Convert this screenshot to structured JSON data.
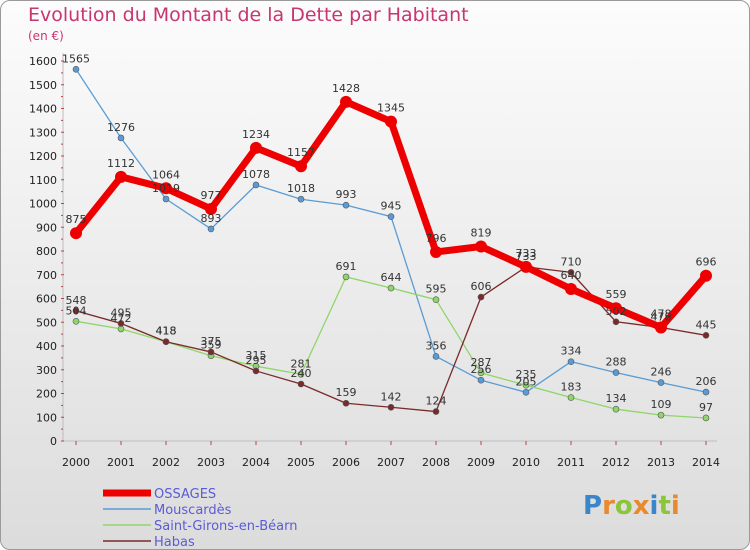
{
  "header": {
    "title": "Evolution du Montant de la Dette par Habitant",
    "unit": "(en €)"
  },
  "logo": {
    "text": "Proxiti"
  },
  "chart_data": {
    "type": "line",
    "title": "Evolution du Montant de la Dette par Habitant",
    "ylabel": "(en €)",
    "ylim": [
      0,
      1600
    ],
    "yticks": [
      0,
      100,
      200,
      300,
      400,
      500,
      600,
      700,
      800,
      900,
      1000,
      1100,
      1200,
      1300,
      1400,
      1500,
      1600
    ],
    "x": [
      "2000",
      "2001",
      "2002",
      "2003",
      "2004",
      "2005",
      "2006",
      "2007",
      "2008",
      "2009",
      "2010",
      "2011",
      "2012",
      "2013",
      "2014"
    ],
    "grid": false,
    "legend_position": "bottom-left",
    "series": [
      {
        "name": "OSSAGES",
        "color": "#ee0000",
        "width": 7,
        "values": [
          875,
          1112,
          1064,
          977,
          1234,
          1157,
          1428,
          1345,
          796,
          819,
          733,
          640,
          559,
          478,
          696
        ]
      },
      {
        "name": "Mouscardès",
        "color": "#5a9bd5",
        "width": 1.3,
        "values": [
          1565,
          1276,
          1019,
          893,
          1078,
          1018,
          993,
          945,
          356,
          256,
          205,
          334,
          288,
          246,
          206
        ]
      },
      {
        "name": "Saint-Girons-en-Béarn",
        "color": "#8ed66a",
        "width": 1.3,
        "values": [
          504,
          472,
          418,
          359,
          315,
          281,
          691,
          644,
          595,
          287,
          235,
          183,
          134,
          109,
          97
        ]
      },
      {
        "name": "Habas",
        "color": "#7a2a2a",
        "width": 1.3,
        "values": [
          548,
          495,
          418,
          375,
          295,
          240,
          159,
          142,
          124,
          606,
          733,
          710,
          502,
          478,
          445
        ]
      }
    ]
  }
}
